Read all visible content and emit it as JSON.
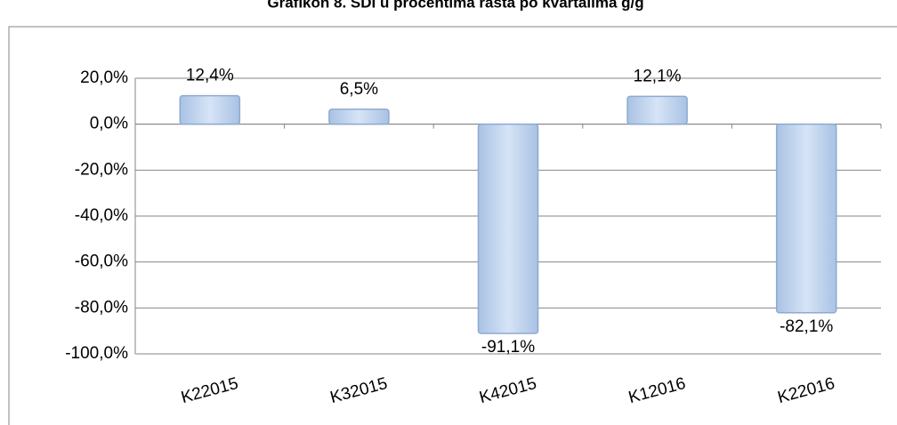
{
  "chart_data": {
    "type": "bar",
    "title": "Grafikon 8. SDI u procentima rasta po kvartalima g/g",
    "categories": [
      "K22015",
      "K32015",
      "K42015",
      "K12016",
      "K22016"
    ],
    "values": [
      12.4,
      6.5,
      -91.1,
      12.1,
      -82.1
    ],
    "value_labels": [
      "12,4%",
      "6,5%",
      "-91,1%",
      "12,1%",
      "-82,1%"
    ],
    "color": "#c6d9f1",
    "ylim": [
      -100,
      20
    ],
    "yticks": [
      {
        "value": 20,
        "label": "20,0%"
      },
      {
        "value": 0,
        "label": "0,0%"
      },
      {
        "value": -20,
        "label": "-20,0%"
      },
      {
        "value": -40,
        "label": "-40,0%"
      },
      {
        "value": -60,
        "label": "-60,0%"
      },
      {
        "value": -80,
        "label": "-80,0%"
      },
      {
        "value": -100,
        "label": "-100,0%"
      }
    ],
    "grid": true
  }
}
